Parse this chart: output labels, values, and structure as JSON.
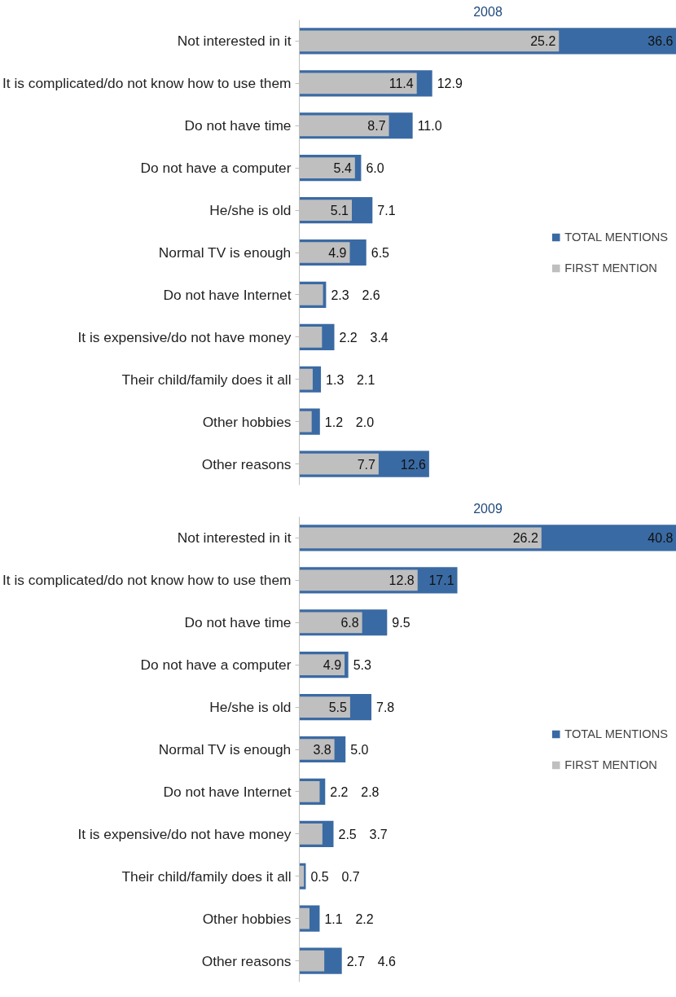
{
  "chart_data": [
    {
      "type": "bar",
      "orientation": "horizontal",
      "title": "2008",
      "categories": [
        "Not interested in it",
        "It is complicated/do not know how to use them",
        "Do not have time",
        "Do not have a computer",
        "He/she is old",
        "Normal TV is enough",
        "Do not have Internet",
        "It is expensive/do not have money",
        "Their child/family does it all",
        "Other hobbies",
        "Other reasons"
      ],
      "series": [
        {
          "name": "TOTAL MENTIONS",
          "color": "#3a6aa3",
          "values": [
            36.6,
            12.9,
            11.0,
            6.0,
            7.1,
            6.5,
            2.6,
            3.4,
            2.1,
            2.0,
            12.6
          ],
          "value_labels": [
            "36.6",
            "12.9",
            "11.0",
            "6.0",
            "7.1",
            "6.5",
            "2.6",
            "3.4",
            "2.1",
            "2.0",
            "12.6"
          ]
        },
        {
          "name": "FIRST MENTION",
          "color": "#bfbfbf",
          "values": [
            25.2,
            11.4,
            8.7,
            5.4,
            5.1,
            4.9,
            2.3,
            2.2,
            1.3,
            1.2,
            7.7
          ],
          "value_labels": [
            "25.2",
            "11.4",
            "8.7",
            "5.4",
            "5.1",
            "4.9",
            "2.3",
            "2.2",
            "1.3",
            "1.2",
            "7.7"
          ]
        }
      ],
      "legend": "right",
      "tick_labels": "y",
      "grid": false
    },
    {
      "type": "bar",
      "orientation": "horizontal",
      "title": "2009",
      "categories": [
        "Not interested in it",
        "It is complicated/do not know how to use them",
        "Do not have time",
        "Do not have a computer",
        "He/she is old",
        "Normal TV is enough",
        "Do not have Internet",
        "It is expensive/do not have money",
        "Their child/family does it all",
        "Other hobbies",
        "Other reasons"
      ],
      "series": [
        {
          "name": "TOTAL MENTIONS",
          "color": "#3a6aa3",
          "values": [
            40.8,
            17.1,
            9.5,
            5.3,
            7.8,
            5.0,
            2.8,
            3.7,
            0.7,
            2.2,
            4.6
          ],
          "value_labels": [
            "40.8",
            "17.1",
            "9.5",
            "5.3",
            "7.8",
            "5.0",
            "2.8",
            "3.7",
            "0.7",
            "2.2",
            "4.6"
          ]
        },
        {
          "name": "FIRST MENTION",
          "color": "#bfbfbf",
          "values": [
            26.2,
            12.8,
            6.8,
            4.9,
            5.5,
            3.8,
            2.2,
            2.5,
            0.5,
            1.1,
            2.7
          ],
          "value_labels": [
            "26.2",
            "12.8",
            "6.8",
            "4.9",
            "5.5",
            "3.8",
            "2.2",
            "2.5",
            "0.5",
            "1.1",
            "2.7"
          ]
        }
      ],
      "legend": "right",
      "tick_labels": "y",
      "grid": false
    }
  ]
}
